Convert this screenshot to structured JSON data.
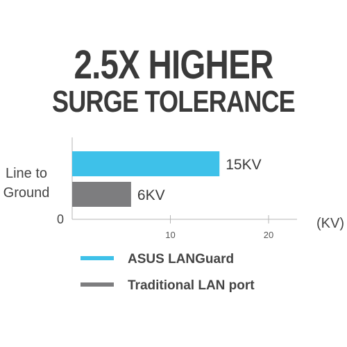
{
  "title_line1": "2.5X HIGHER",
  "title_line2": "SURGE TOLERANCE",
  "chart_data": {
    "type": "bar",
    "orientation": "horizontal",
    "categories": [
      "Line to Ground"
    ],
    "category_label_lines": [
      "Line to",
      "Ground"
    ],
    "series": [
      {
        "name": "ASUS LANGuard",
        "values": [
          15
        ],
        "value_label": "15KV",
        "color": "#3ec1e9"
      },
      {
        "name": "Traditional LAN port",
        "values": [
          6
        ],
        "value_label": "6KV",
        "color": "#7d7d7f"
      }
    ],
    "xlim": [
      0,
      22
    ],
    "xticks": [
      0,
      10,
      20
    ],
    "xtick_labels": [
      "0",
      "10",
      "20"
    ],
    "xlabel": "(KV)",
    "legend_position": "bottom"
  }
}
